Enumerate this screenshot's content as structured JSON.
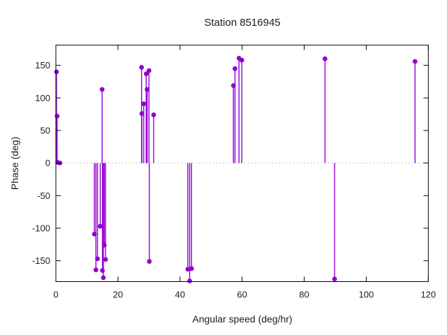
{
  "chart_data": {
    "type": "scatter",
    "style": "impulses-with-points",
    "title": "Station 8516945",
    "xlabel": "Angular speed (deg/hr)",
    "ylabel": "Phase (deg)",
    "xlim": [
      0,
      120
    ],
    "ylim": [
      -182,
      181
    ],
    "xticks": [
      0,
      20,
      40,
      60,
      80,
      100,
      120
    ],
    "yticks": [
      -150,
      -100,
      -50,
      0,
      50,
      100,
      150
    ],
    "grid": false,
    "zero_line": "dotted",
    "legend": "none",
    "series_color": "#9400d3",
    "border_color": "#000000",
    "zero_line_color": "#909090",
    "points": [
      [
        0.2,
        140
      ],
      [
        0.4,
        72
      ],
      [
        0.6,
        1
      ],
      [
        1.3,
        0
      ],
      [
        12.4,
        -109
      ],
      [
        12.9,
        -164
      ],
      [
        13.4,
        -147
      ],
      [
        14.3,
        -97
      ],
      [
        14.9,
        113
      ],
      [
        15.0,
        -165
      ],
      [
        15.3,
        -176
      ],
      [
        15.6,
        -126
      ],
      [
        16.0,
        -148
      ],
      [
        27.6,
        147
      ],
      [
        27.7,
        76
      ],
      [
        28.3,
        91
      ],
      [
        29.1,
        137
      ],
      [
        29.4,
        113
      ],
      [
        30.0,
        142
      ],
      [
        30.1,
        -151
      ],
      [
        31.5,
        74
      ],
      [
        42.5,
        -163
      ],
      [
        43.1,
        -181
      ],
      [
        43.7,
        -162
      ],
      [
        57.2,
        119
      ],
      [
        57.7,
        145
      ],
      [
        59.0,
        161
      ],
      [
        59.9,
        158
      ],
      [
        86.7,
        160
      ],
      [
        89.8,
        -178
      ],
      [
        115.7,
        156
      ]
    ]
  }
}
